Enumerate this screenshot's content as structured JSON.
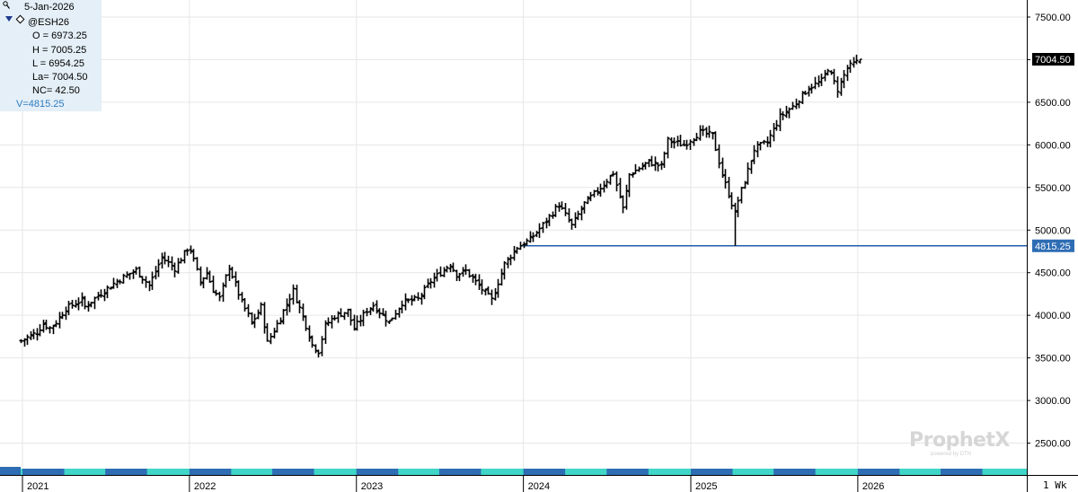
{
  "infobox": {
    "date": "5-Jan-2026",
    "symbol": "@ESH26",
    "open": "O = 6973.25",
    "high": "H = 7005.25",
    "low": "L = 6954.25",
    "last": "La= 7004.50",
    "net_change": "NC= 42.50",
    "value": "V=4815.25"
  },
  "watermark": {
    "brand": "ProphetX",
    "sub": "powered by DTN"
  },
  "interval": "1 Wk",
  "colors": {
    "bars": "#000000",
    "hline": "#1f5fa8",
    "last_tag_bg": "#000000",
    "hline_tag_bg": "#2e6db4",
    "infobox_bg": "#e4eff7",
    "value_text": "#2e7bbf",
    "strip_dark": "#2e6db4",
    "strip_light": "#40d6c8"
  },
  "chart_data": {
    "type": "ohlc",
    "interval": "1 Wk",
    "symbol": "@ESH26",
    "ylim": [
      2200,
      7700
    ],
    "yticks": [
      2500,
      3000,
      3500,
      4000,
      4500,
      5000,
      5500,
      6000,
      6500,
      7000,
      7500
    ],
    "ytick_labels": [
      "2500.00",
      "3000.00",
      "3500.00",
      "4000.00",
      "4500.00",
      "5000.00",
      "5500.00",
      "6000.00",
      "6500.00",
      "7000.00",
      "7500.00"
    ],
    "xlabels": [
      "2021",
      "2022",
      "2023",
      "2024",
      "2025",
      "2026"
    ],
    "grid": true,
    "last_price_label": "7004.50",
    "last_price": 7004.5,
    "hline_value": 4815.25,
    "hline_label": "4815.25",
    "anchors": [
      [
        "2020-12-28",
        3700
      ],
      [
        "2021-01-04",
        3720
      ],
      [
        "2021-02-01",
        3800
      ],
      [
        "2021-02-15",
        3900
      ],
      [
        "2021-03-01",
        3850
      ],
      [
        "2021-03-15",
        3920
      ],
      [
        "2021-04-05",
        4080
      ],
      [
        "2021-05-10",
        4180
      ],
      [
        "2021-05-17",
        4100
      ],
      [
        "2021-06-14",
        4230
      ],
      [
        "2021-07-26",
        4400
      ],
      [
        "2021-08-16",
        4470
      ],
      [
        "2021-09-06",
        4530
      ],
      [
        "2021-10-04",
        4350
      ],
      [
        "2021-11-01",
        4680
      ],
      [
        "2021-11-29",
        4550
      ],
      [
        "2021-12-27",
        4780
      ],
      [
        "2022-01-03",
        4770
      ],
      [
        "2022-01-24",
        4390
      ],
      [
        "2022-02-07",
        4500
      ],
      [
        "2022-02-21",
        4300
      ],
      [
        "2022-03-07",
        4200
      ],
      [
        "2022-03-28",
        4570
      ],
      [
        "2022-04-25",
        4150
      ],
      [
        "2022-05-09",
        4000
      ],
      [
        "2022-05-16",
        3900
      ],
      [
        "2022-06-06",
        4100
      ],
      [
        "2022-06-20",
        3680
      ],
      [
        "2022-07-18",
        3970
      ],
      [
        "2022-08-15",
        4290
      ],
      [
        "2022-09-12",
        3880
      ],
      [
        "2022-09-26",
        3650
      ],
      [
        "2022-10-10",
        3580
      ],
      [
        "2022-10-24",
        3880
      ],
      [
        "2022-11-14",
        3990
      ],
      [
        "2022-12-12",
        4050
      ],
      [
        "2022-12-26",
        3840
      ],
      [
        "2023-01-23",
        4060
      ],
      [
        "2023-02-06",
        4120
      ],
      [
        "2023-03-13",
        3920
      ],
      [
        "2023-04-10",
        4150
      ],
      [
        "2023-05-15",
        4190
      ],
      [
        "2023-06-12",
        4400
      ],
      [
        "2023-07-24",
        4600
      ],
      [
        "2023-08-07",
        4480
      ],
      [
        "2023-08-28",
        4520
      ],
      [
        "2023-09-18",
        4390
      ],
      [
        "2023-10-23",
        4180
      ],
      [
        "2023-11-20",
        4600
      ],
      [
        "2023-12-18",
        4800
      ],
      [
        "2024-01-15",
        4890
      ],
      [
        "2024-02-12",
        5060
      ],
      [
        "2024-03-18",
        5300
      ],
      [
        "2024-04-15",
        5050
      ],
      [
        "2024-05-13",
        5310
      ],
      [
        "2024-06-17",
        5500
      ],
      [
        "2024-07-15",
        5670
      ],
      [
        "2024-08-05",
        5250
      ],
      [
        "2024-08-19",
        5650
      ],
      [
        "2024-09-30",
        5800
      ],
      [
        "2024-10-28",
        5750
      ],
      [
        "2024-11-11",
        6050
      ],
      [
        "2024-12-16",
        6000
      ],
      [
        "2025-01-20",
        6150
      ],
      [
        "2025-02-17",
        6110
      ],
      [
        "2025-03-10",
        5650
      ],
      [
        "2025-04-07",
        5200
      ],
      [
        "2025-04-14",
        5350
      ],
      [
        "2025-05-05",
        5700
      ],
      [
        "2025-05-19",
        5950
      ],
      [
        "2025-06-16",
        6030
      ],
      [
        "2025-07-14",
        6330
      ],
      [
        "2025-08-11",
        6450
      ],
      [
        "2025-09-15",
        6670
      ],
      [
        "2025-10-13",
        6750
      ],
      [
        "2025-10-27",
        6900
      ],
      [
        "2025-11-17",
        6650
      ],
      [
        "2025-12-08",
        6900
      ],
      [
        "2025-12-22",
        6950
      ],
      [
        "2026-01-05",
        6990
      ]
    ]
  }
}
